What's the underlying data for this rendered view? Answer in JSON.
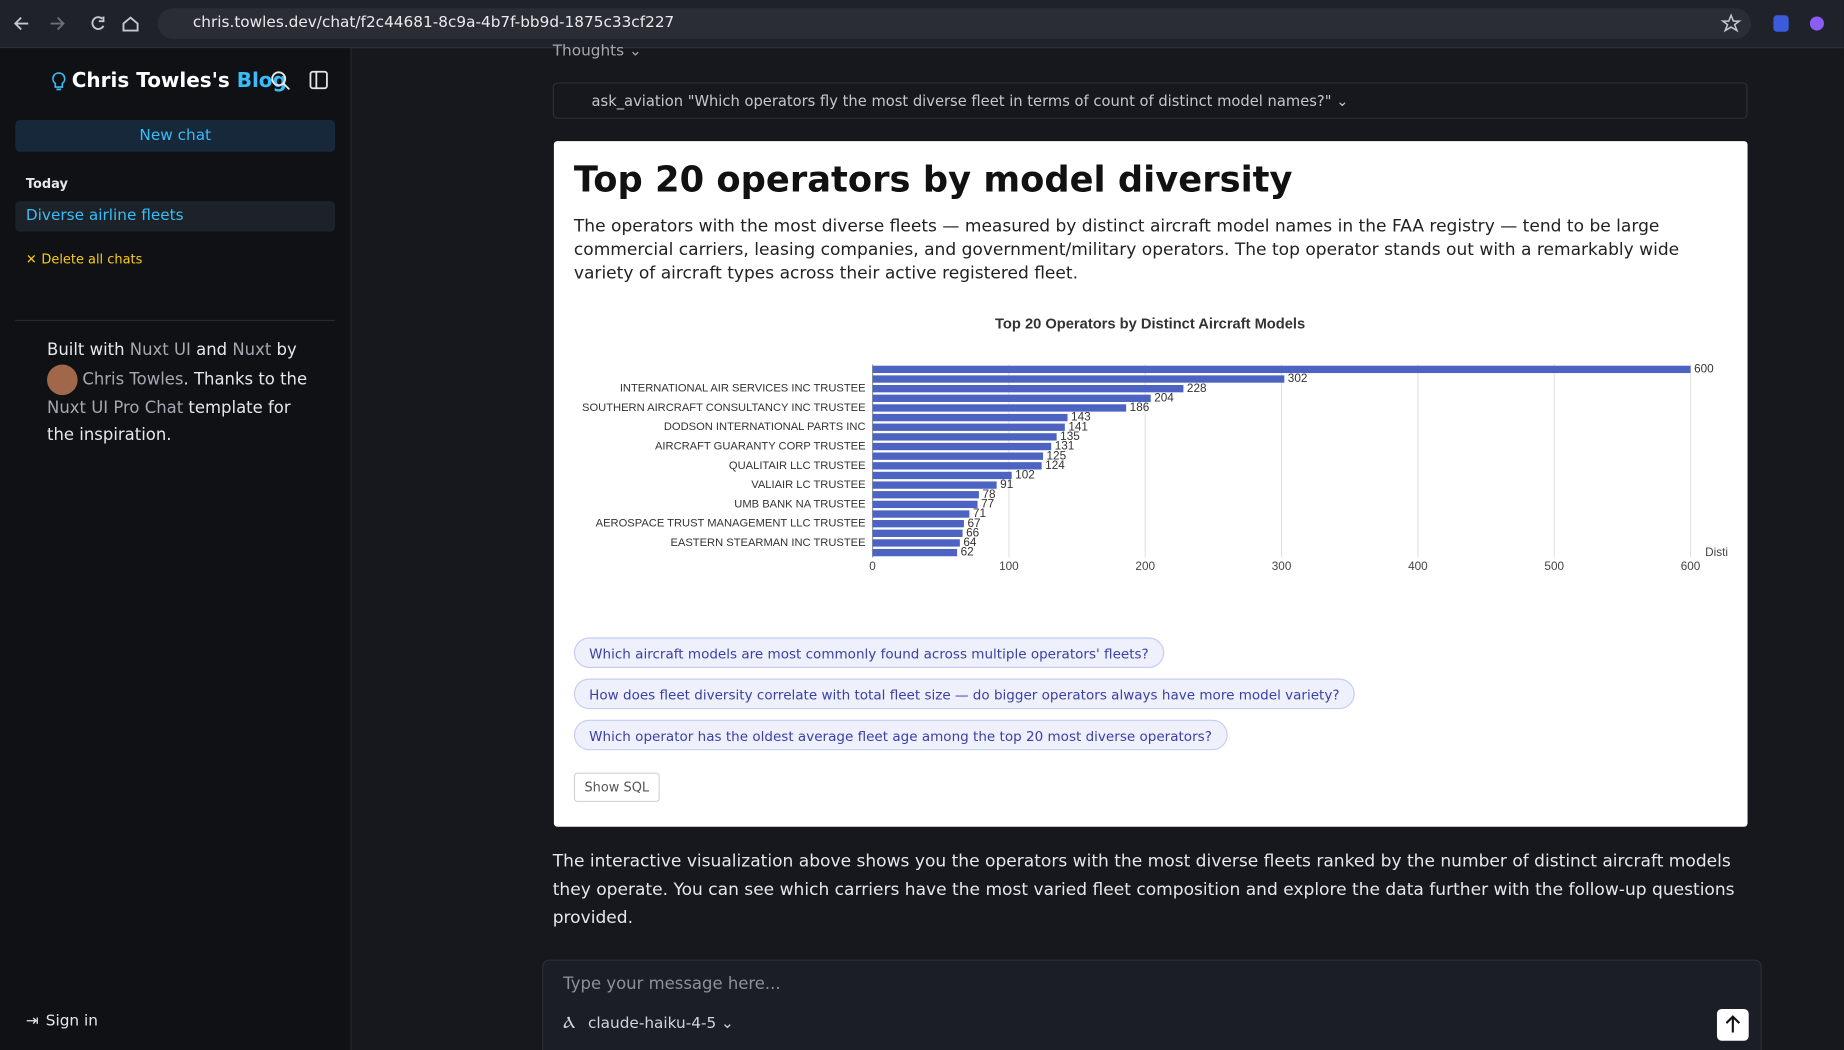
{
  "browser": {
    "url": "chris.towles.dev/chat/f2c44681-8c9a-4b7f-bb9d-1875c33cf227"
  },
  "sidebar": {
    "brand": "Chris Towles's",
    "brand_accent": "Blog",
    "new_chat": "New chat",
    "section": "Today",
    "chats": [
      "Diverse airline fleets"
    ],
    "delete_all": "Delete all chats",
    "footer": [
      "Built with",
      "Nuxt UI",
      "and",
      "Nuxt",
      "by",
      "Chris Towles",
      ". Thanks to the",
      "Nuxt UI Pro Chat",
      "template for the inspiration."
    ],
    "sign_in": "Sign in"
  },
  "chat": {
    "thoughts": "Thoughts",
    "tool_call": "ask_aviation \"Which operators fly the most diverse fleet in terms of count of distinct model names?\"",
    "card_title": "Top 20 operators by model diversity",
    "card_description": "The operators with the most diverse fleets — measured by distinct aircraft model names in the FAA registry — tend to be large commercial carriers, leasing companies, and government/military operators. The top operator stands out with a remarkably wide variety of aircraft types across their active registered fleet.",
    "suggestions": [
      "Which aircraft models are most commonly found across multiple operators' fleets?",
      "How does fleet diversity correlate with total fleet size — do bigger operators always have more model variety?",
      "Which operator has the oldest average fleet age among the top 20 most diverse operators?"
    ],
    "show_sql": "Show SQL",
    "summary": "The interactive visualization above shows you the operators with the most diverse fleets ranked by the number of distinct aircraft models they operate. You can see which carriers have the most varied fleet composition and explore the data further with the follow-up questions provided.",
    "input_placeholder": "Type your message here...",
    "model": "claude-haiku-4-5"
  },
  "chart_data": {
    "type": "bar",
    "orientation": "horizontal",
    "title": "Top 20 Operators by Distinct Aircraft Models",
    "x_label": "Disti",
    "categories": [
      null,
      null,
      "INTERNATIONAL AIR SERVICES INC TRUSTEE",
      null,
      "SOUTHERN AIRCRAFT CONSULTANCY INC TRUSTEE",
      null,
      "DODSON INTERNATIONAL PARTS INC",
      null,
      "AIRCRAFT GUARANTY CORP TRUSTEE",
      null,
      "QUALITAIR LLC TRUSTEE",
      null,
      "VALIAIR LC TRUSTEE",
      null,
      "UMB BANK NA TRUSTEE",
      null,
      "AEROSPACE TRUST MANAGEMENT LLC TRUSTEE",
      null,
      "EASTERN STEARMAN INC TRUSTEE",
      null
    ],
    "values": [
      600,
      302,
      228,
      204,
      186,
      143,
      141,
      135,
      131,
      125,
      124,
      102,
      91,
      78,
      77,
      71,
      67,
      66,
      64,
      62
    ],
    "color": "#4c63c2",
    "xlim": [
      0,
      628
    ],
    "xticks": [
      0,
      100,
      200,
      300,
      400,
      500,
      600
    ],
    "grid": true
  }
}
